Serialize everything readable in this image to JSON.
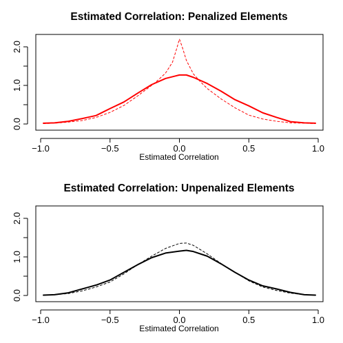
{
  "chart_data": [
    {
      "type": "line",
      "title": "Estimated Correlation: Penalized Elements",
      "xlabel": "Estimated Correlation",
      "ylabel": "",
      "xlim": [
        -1.0,
        1.0
      ],
      "ylim": [
        0,
        2.25
      ],
      "x_ticks": [
        "-1.0",
        "-0.5",
        "0.0",
        "0.5",
        "1.0"
      ],
      "y_ticks": [
        "0.0",
        "1.0",
        "2.0"
      ],
      "y_minor_ticks": [
        0.5,
        1.5
      ],
      "grid": false,
      "legend": "none",
      "color": "#ff0000",
      "series": [
        {
          "style": "solid",
          "x": [
            -0.98,
            -0.9,
            -0.8,
            -0.7,
            -0.6,
            -0.5,
            -0.4,
            -0.3,
            -0.2,
            -0.1,
            0.0,
            0.05,
            0.1,
            0.2,
            0.3,
            0.4,
            0.5,
            0.6,
            0.7,
            0.8,
            0.9,
            0.98
          ],
          "y": [
            0.02,
            0.03,
            0.07,
            0.14,
            0.22,
            0.4,
            0.57,
            0.8,
            1.02,
            1.18,
            1.27,
            1.27,
            1.21,
            1.05,
            0.85,
            0.63,
            0.47,
            0.29,
            0.17,
            0.06,
            0.03,
            0.02
          ]
        },
        {
          "style": "dashed",
          "x": [
            -0.98,
            -0.9,
            -0.8,
            -0.7,
            -0.6,
            -0.5,
            -0.4,
            -0.3,
            -0.2,
            -0.15,
            -0.1,
            -0.05,
            -0.02,
            0.0,
            0.02,
            0.05,
            0.1,
            0.15,
            0.2,
            0.3,
            0.4,
            0.5,
            0.6,
            0.7,
            0.8,
            0.9,
            0.98
          ],
          "y": [
            0.01,
            0.02,
            0.05,
            0.09,
            0.17,
            0.3,
            0.48,
            0.73,
            1.0,
            1.15,
            1.32,
            1.6,
            1.95,
            2.2,
            2.0,
            1.65,
            1.3,
            1.1,
            0.92,
            0.65,
            0.42,
            0.23,
            0.13,
            0.07,
            0.03,
            0.02,
            0.01
          ]
        }
      ]
    },
    {
      "type": "line",
      "title": "Estimated Correlation: Unpenalized Elements",
      "xlabel": "Estimated Correlation",
      "ylabel": "",
      "xlim": [
        -1.0,
        1.0
      ],
      "ylim": [
        0,
        2.25
      ],
      "x_ticks": [
        "-1.0",
        "-0.5",
        "0.0",
        "0.5",
        "1.0"
      ],
      "y_ticks": [
        "0.0",
        "1.0",
        "2.0"
      ],
      "y_minor_ticks": [
        0.5,
        1.5
      ],
      "grid": false,
      "legend": "none",
      "color": "#000000",
      "series": [
        {
          "style": "solid",
          "x": [
            -0.98,
            -0.9,
            -0.8,
            -0.7,
            -0.6,
            -0.5,
            -0.4,
            -0.3,
            -0.2,
            -0.1,
            0.0,
            0.05,
            0.1,
            0.2,
            0.3,
            0.4,
            0.5,
            0.6,
            0.7,
            0.8,
            0.9,
            0.98
          ],
          "y": [
            0.01,
            0.02,
            0.07,
            0.17,
            0.27,
            0.4,
            0.6,
            0.8,
            0.98,
            1.1,
            1.15,
            1.17,
            1.14,
            1.02,
            0.82,
            0.6,
            0.4,
            0.25,
            0.17,
            0.08,
            0.02,
            0.01
          ]
        },
        {
          "style": "dashed",
          "x": [
            -0.98,
            -0.9,
            -0.8,
            -0.7,
            -0.6,
            -0.5,
            -0.4,
            -0.3,
            -0.2,
            -0.1,
            0.0,
            0.05,
            0.1,
            0.2,
            0.3,
            0.4,
            0.5,
            0.6,
            0.7,
            0.8,
            0.9,
            0.98
          ],
          "y": [
            0.01,
            0.02,
            0.05,
            0.12,
            0.22,
            0.35,
            0.56,
            0.8,
            1.02,
            1.22,
            1.35,
            1.36,
            1.3,
            1.08,
            0.83,
            0.6,
            0.38,
            0.22,
            0.13,
            0.06,
            0.02,
            0.01
          ]
        }
      ]
    }
  ]
}
